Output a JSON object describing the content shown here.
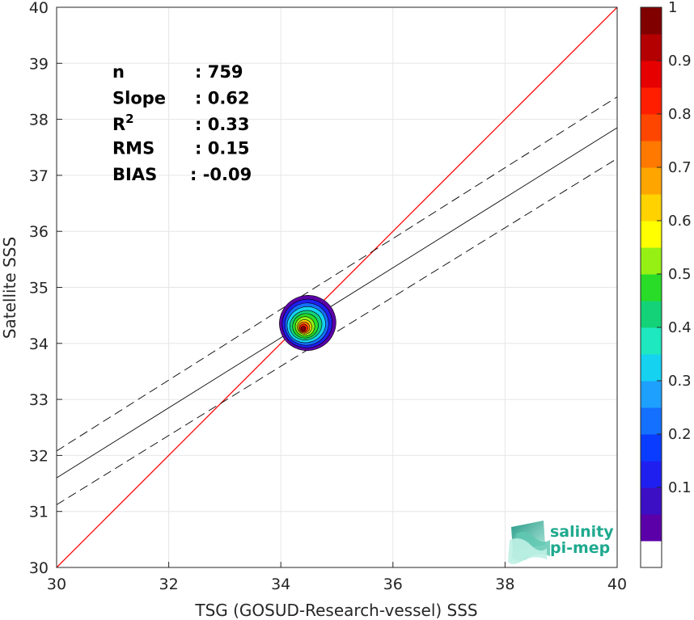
{
  "chart_data": {
    "type": "scatter",
    "subtype": "density-contour",
    "xlabel": "TSG (GOSUD-Research-vessel) SSS",
    "ylabel": "Satellite SSS",
    "xlim": [
      30,
      40
    ],
    "ylim": [
      30,
      40
    ],
    "xticks": [
      "30",
      "32",
      "34",
      "36",
      "38",
      "40"
    ],
    "yticks": [
      "30",
      "31",
      "32",
      "33",
      "34",
      "35",
      "36",
      "37",
      "38",
      "39",
      "40"
    ],
    "grid": true,
    "density_center": {
      "x": 34.45,
      "y": 34.35
    },
    "lines": [
      {
        "name": "1:1",
        "style": "solid",
        "color": "#ff0000",
        "x": [
          30,
          40
        ],
        "y": [
          30,
          40
        ]
      },
      {
        "name": "fit",
        "style": "solid",
        "color": "#000000",
        "x": [
          30,
          40
        ],
        "y": [
          31.6,
          37.85
        ]
      },
      {
        "name": "fit+",
        "style": "dashed",
        "color": "#000000",
        "x": [
          30,
          40
        ],
        "y": [
          32.08,
          38.4
        ]
      },
      {
        "name": "fit-",
        "style": "dashed",
        "color": "#000000",
        "x": [
          30,
          40
        ],
        "y": [
          31.12,
          37.3
        ]
      }
    ],
    "stats": [
      {
        "label": "n",
        "value": ": 759"
      },
      {
        "label": "Slope",
        "value": ": 0.62"
      },
      {
        "label": "R",
        "sup": "2",
        "value": ": 0.33"
      },
      {
        "label": "RMS",
        "value": ": 0.15"
      },
      {
        "label": "BIAS",
        "value": ": -0.09"
      }
    ],
    "colorbar": {
      "range": [
        0,
        1
      ],
      "ticks": [
        "0.1",
        "0.2",
        "0.3",
        "0.4",
        "0.5",
        "0.6",
        "0.7",
        "0.8",
        "0.9",
        "1"
      ],
      "colors": [
        "#ffffff",
        "#5b00a8",
        "#3c0fc4",
        "#1f1ff0",
        "#0a3cff",
        "#1470ff",
        "#1ea0ff",
        "#14d2f0",
        "#1ee8c0",
        "#14d278",
        "#28dc28",
        "#96f014",
        "#ffff00",
        "#ffd200",
        "#ffa500",
        "#ff7800",
        "#ff4600",
        "#ff1e00",
        "#e60000",
        "#b40000",
        "#800000"
      ]
    }
  },
  "logo": {
    "line1": "salinity",
    "line2": "pi-mep"
  }
}
